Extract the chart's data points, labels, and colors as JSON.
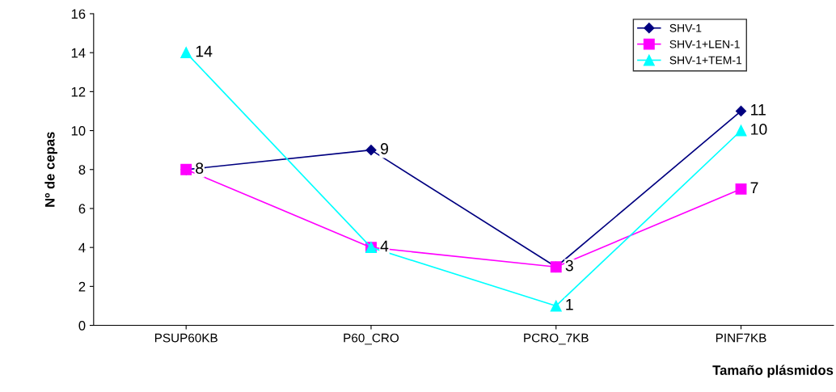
{
  "chart_data": {
    "type": "line",
    "xlabel": "Tamaño plásmidos",
    "ylabel": "Nº de cepas",
    "categories": [
      "PSUP60KB",
      "P60_CRO",
      "PCRO_7KB",
      "PINF7KB"
    ],
    "series": [
      {
        "name": "SHV-1",
        "color": "#000080",
        "marker": "diamond",
        "values": [
          8,
          9,
          3,
          11
        ],
        "value_labels": [
          null,
          "9",
          null,
          "11"
        ]
      },
      {
        "name": "SHV-1+LEN-1",
        "color": "#ff00ff",
        "marker": "square",
        "values": [
          8,
          4,
          3,
          7
        ],
        "value_labels": [
          "8",
          "4",
          "3",
          "7"
        ]
      },
      {
        "name": "SHV-1+TEM-1",
        "color": "#00ffff",
        "marker": "triangle",
        "values": [
          14,
          4,
          1,
          10
        ],
        "value_labels": [
          "14",
          null,
          "1",
          "10"
        ]
      }
    ],
    "ylim": [
      0,
      16
    ],
    "yticks": [
      0,
      2,
      4,
      6,
      8,
      10,
      12,
      14,
      16
    ],
    "grid": false,
    "legend": "top right"
  }
}
